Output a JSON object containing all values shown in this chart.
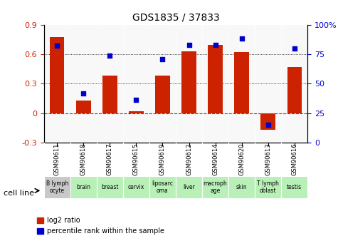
{
  "title": "GDS1835 / 37833",
  "categories": [
    "GSM90611",
    "GSM90618",
    "GSM90617",
    "GSM90615",
    "GSM90619",
    "GSM90612",
    "GSM90614",
    "GSM90620",
    "GSM90613",
    "GSM90616"
  ],
  "cell_lines": [
    "B lymph\nocyte",
    "brain",
    "breast",
    "cervix",
    "liposarc\noma",
    "liver",
    "macroph\nage",
    "skin",
    "T lymph\noblast",
    "testis"
  ],
  "cell_line_colors": [
    "#c8c8c8",
    "#b8f0b8",
    "#b8f0b8",
    "#b8f0b8",
    "#b8f0b8",
    "#b8f0b8",
    "#b8f0b8",
    "#b8f0b8",
    "#b8f0b8",
    "#b8f0b8"
  ],
  "log2_ratio": [
    0.77,
    0.13,
    0.38,
    0.02,
    0.38,
    0.63,
    0.69,
    0.62,
    -0.17,
    0.47
  ],
  "percentile_rank": [
    82,
    42,
    74,
    36,
    71,
    83,
    83,
    88,
    15,
    80
  ],
  "ylim_left": [
    -0.3,
    0.9
  ],
  "ylim_right": [
    0,
    100
  ],
  "bar_color": "#cc2200",
  "dot_color": "#0000cc",
  "hline_color": "#cc2200",
  "grid_color": "#000000",
  "bg_color": "#ffffff",
  "ylabel_left": "",
  "ylabel_right": "",
  "legend_log2": "log2 ratio",
  "legend_pct": "percentile rank within the sample",
  "cell_line_label": "cell line"
}
